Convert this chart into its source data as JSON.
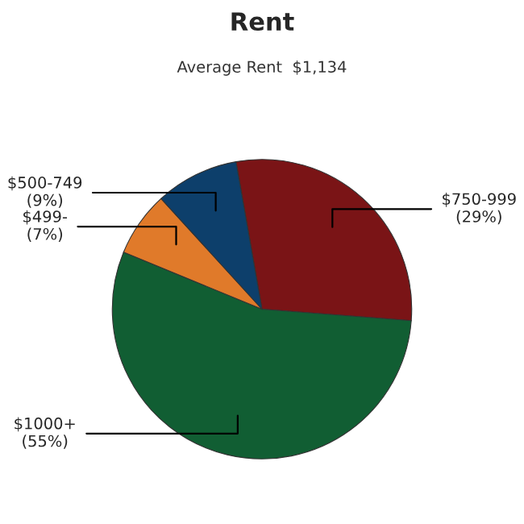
{
  "chart_data": {
    "type": "pie",
    "title": "Rent",
    "subtitle": "Average Rent  $1,134",
    "categories": [
      "$750-999",
      "$1000+",
      "$499-",
      "$500-749"
    ],
    "values": [
      29,
      55,
      7,
      9
    ],
    "value_labels": [
      "(29%)",
      "(55%)",
      "(7%)",
      "(9%)"
    ],
    "colors": [
      "#7a1416",
      "#115e33",
      "#e07a2a",
      "#0d3f6b"
    ]
  }
}
